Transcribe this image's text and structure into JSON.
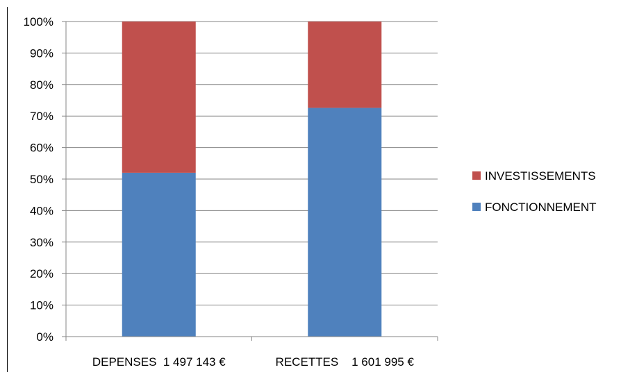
{
  "chart_data": {
    "type": "bar",
    "stacked": true,
    "percent_stacked": true,
    "categories": [
      "DEPENSES  1 497 143 €",
      "RECETTES    1 601 995 €"
    ],
    "series": [
      {
        "name": "FONCTIONNEMENT",
        "color": "#4f81bd",
        "values": [
          52,
          72.6
        ]
      },
      {
        "name": "INVESTISSEMENTS",
        "color": "#c0504d",
        "values": [
          48,
          27.4
        ]
      }
    ],
    "ylim": [
      0,
      100
    ],
    "y_ticks": [
      "0%",
      "10%",
      "20%",
      "30%",
      "40%",
      "50%",
      "60%",
      "70%",
      "80%",
      "90%",
      "100%"
    ],
    "grid": true,
    "legend_placement": "right",
    "legend": [
      "INVESTISSEMENTS",
      "FONCTIONNEMENT"
    ],
    "title_fragment": "",
    "xlabel": "",
    "ylabel": ""
  }
}
